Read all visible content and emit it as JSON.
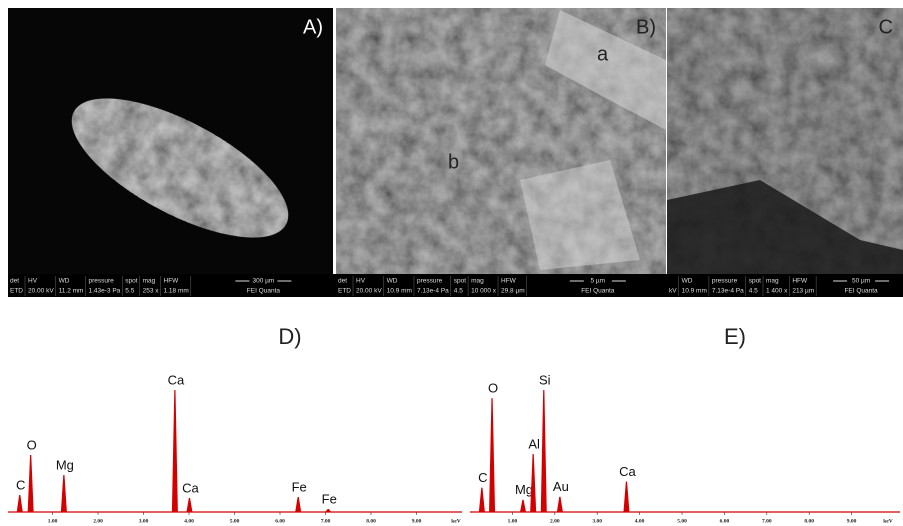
{
  "panels": [
    {
      "label": "A)",
      "info": [
        {
          "header": "det",
          "value": "ETD"
        },
        {
          "header": "HV",
          "value": "20.00 kV"
        },
        {
          "header": "WD",
          "value": "11.2 mm"
        },
        {
          "header": "pressure",
          "value": "1.43e-3 Pa"
        },
        {
          "header": "spot",
          "value": "5.5"
        },
        {
          "header": "mag",
          "value": "253 x"
        },
        {
          "header": "HFW",
          "value": "1.18 mm"
        },
        {
          "header": "300 µm",
          "value": "FEI Quanta"
        }
      ]
    },
    {
      "label": "B)",
      "info": [
        {
          "header": "det",
          "value": "ETD"
        },
        {
          "header": "HV",
          "value": "20.00 kV"
        },
        {
          "header": "WD",
          "value": "10.9 mm"
        },
        {
          "header": "pressure",
          "value": "7.13e-4 Pa"
        },
        {
          "header": "spot",
          "value": "4.5"
        },
        {
          "header": "mag",
          "value": "10 000 x"
        },
        {
          "header": "HFW",
          "value": "29.8 µm"
        },
        {
          "header": "5 µm",
          "value": "FEI Quanta"
        }
      ]
    },
    {
      "label": "C",
      "info": [
        {
          "value": "kV"
        },
        {
          "header": "WD",
          "value": "10.9 mm"
        },
        {
          "header": "pressure",
          "value": "7.13e-4 Pa"
        },
        {
          "header": "spot",
          "value": "4.5"
        },
        {
          "header": "mag",
          "value": "1 400 x"
        },
        {
          "header": "HFW",
          "value": "213 µm"
        },
        {
          "header": "50 µm",
          "value": "FEI Quanta"
        }
      ]
    }
  ],
  "annotations": [
    "a",
    "b"
  ],
  "chart_data": [
    {
      "type": "spectrum",
      "title": "D)",
      "color": "#d40000",
      "x": [
        0.28,
        0.52,
        1.25,
        3.69,
        4.01,
        6.4,
        7.06
      ],
      "values": [
        17,
        57,
        37,
        122,
        14,
        15,
        3
      ],
      "labels": [
        "C",
        "O",
        "Mg",
        "Ca",
        "Ca",
        "Fe",
        "Fe"
      ],
      "xlim": [
        0,
        10
      ],
      "xlabel": "keV",
      "xticks": [
        {
          "value": 1,
          "label": "1.00"
        },
        {
          "value": 2,
          "label": "2.00"
        },
        {
          "value": 3,
          "label": "3.00"
        },
        {
          "value": 4,
          "label": "4.00"
        },
        {
          "value": 5,
          "label": "5.00"
        },
        {
          "value": 6,
          "label": "6.00"
        },
        {
          "value": 7,
          "label": "7.00"
        },
        {
          "value": 8,
          "label": "8.00"
        },
        {
          "value": 9,
          "label": "9.00"
        }
      ]
    },
    {
      "type": "spectrum",
      "title": "E)",
      "color": "#d40000",
      "x": [
        0.28,
        0.52,
        1.25,
        1.49,
        1.74,
        2.12,
        3.69
      ],
      "values": [
        24,
        112,
        12,
        57,
        120,
        15,
        30
      ],
      "labels": [
        "C",
        "O",
        "Mg",
        "Al",
        "Si",
        "Au",
        "Ca"
      ],
      "xlim": [
        0,
        10
      ],
      "xlabel": "keV",
      "xticks": [
        {
          "value": 1,
          "label": "1.00"
        },
        {
          "value": 2,
          "label": "2.00"
        },
        {
          "value": 3,
          "label": "3.00"
        },
        {
          "value": 4,
          "label": "4.00"
        },
        {
          "value": 5,
          "label": "5.00"
        },
        {
          "value": 6,
          "label": "6.00"
        },
        {
          "value": 7,
          "label": "7.00"
        },
        {
          "value": 8,
          "label": "8.00"
        },
        {
          "value": 9,
          "label": "9.00"
        }
      ]
    }
  ]
}
